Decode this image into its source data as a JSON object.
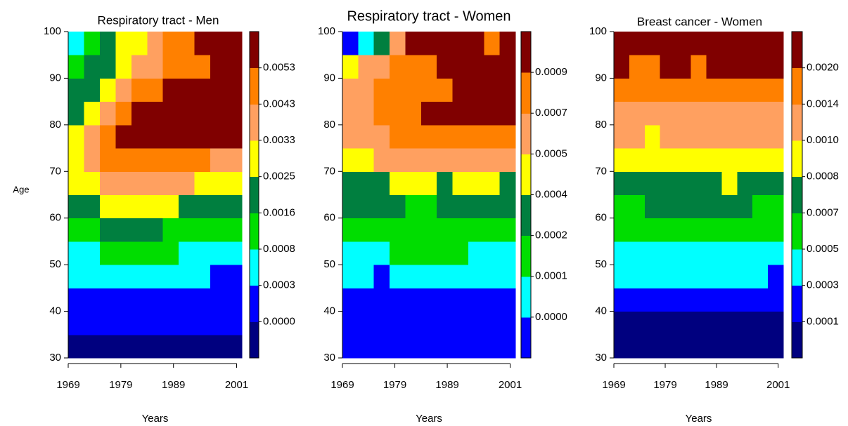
{
  "chart_data": [
    {
      "type": "heatmap",
      "title": "Respiratory tract - Men",
      "x_label": "Years",
      "y_label": "Age",
      "x_bins": [
        1969,
        1972,
        1975,
        1978,
        1981,
        1984,
        1987,
        1990,
        1993,
        1996,
        1999,
        2002
      ],
      "y_bins": [
        30,
        35,
        40,
        45,
        50,
        55,
        60,
        65,
        70,
        75,
        80,
        85,
        90,
        95,
        100
      ],
      "xlim": [
        1969,
        2002
      ],
      "ylim": [
        30,
        100
      ],
      "xticks": [
        1969,
        1979,
        1989,
        2001
      ],
      "yticks": [
        30,
        40,
        50,
        60,
        70,
        80,
        90,
        100
      ],
      "z": [
        [
          1e-05,
          1e-05,
          1e-05,
          1e-05,
          1e-05,
          1e-05,
          1e-05,
          1e-05,
          1e-05,
          1e-05,
          1e-05
        ],
        [
          0.0001,
          0.0001,
          0.0001,
          0.0001,
          0.0001,
          0.0001,
          0.0001,
          0.0001,
          0.0001,
          0.0001,
          0.0001
        ],
        [
          0.0001,
          0.0001,
          0.0001,
          0.0001,
          0.0001,
          0.0001,
          0.0001,
          0.0001,
          0.0001,
          0.0001,
          0.0001
        ],
        [
          0.0005,
          0.0005,
          0.0005,
          0.0005,
          0.0005,
          0.0005,
          0.0005,
          0.0005,
          0.0005,
          0.0001,
          0.0001
        ],
        [
          0.0005,
          0.0005,
          0.0012,
          0.0012,
          0.0012,
          0.0012,
          0.0012,
          0.0005,
          0.0005,
          0.0005,
          0.0005
        ],
        [
          0.0012,
          0.0012,
          0.002,
          0.002,
          0.002,
          0.002,
          0.0012,
          0.0012,
          0.0012,
          0.0012,
          0.0012
        ],
        [
          0.002,
          0.002,
          0.0029,
          0.0029,
          0.0029,
          0.0029,
          0.0029,
          0.002,
          0.002,
          0.002,
          0.002
        ],
        [
          0.0029,
          0.0029,
          0.0038,
          0.0038,
          0.0038,
          0.0038,
          0.0038,
          0.0038,
          0.0029,
          0.0029,
          0.0029
        ],
        [
          0.0029,
          0.0038,
          0.0048,
          0.0048,
          0.0048,
          0.0048,
          0.0048,
          0.0048,
          0.0048,
          0.0038,
          0.0038
        ],
        [
          0.0029,
          0.0038,
          0.0048,
          0.006,
          0.006,
          0.006,
          0.006,
          0.006,
          0.006,
          0.006,
          0.006
        ],
        [
          0.002,
          0.0029,
          0.0038,
          0.0048,
          0.006,
          0.006,
          0.006,
          0.006,
          0.006,
          0.006,
          0.006
        ],
        [
          0.002,
          0.002,
          0.0029,
          0.0038,
          0.0048,
          0.0048,
          0.006,
          0.006,
          0.006,
          0.006,
          0.006
        ],
        [
          0.0012,
          0.002,
          0.002,
          0.0029,
          0.0038,
          0.0038,
          0.0048,
          0.0048,
          0.0048,
          0.006,
          0.006
        ],
        [
          0.0005,
          0.0012,
          0.002,
          0.0029,
          0.0029,
          0.0038,
          0.0048,
          0.0048,
          0.006,
          0.006,
          0.006
        ]
      ],
      "colorbar": {
        "colors": [
          "#00007f",
          "#0000ff",
          "#00ffff",
          "#00dd00",
          "#007f3f",
          "#ffff00",
          "#ffa060",
          "#ff8000",
          "#800000"
        ],
        "ticks": [
          {
            "value": 2e-05,
            "label": "0.0000"
          },
          0.0003,
          0.0008,
          0.0016,
          0.0025,
          0.0033,
          0.0043,
          0.0053
        ]
      }
    },
    {
      "type": "heatmap",
      "title": "Respiratory tract - Women",
      "x_label": "Years",
      "x_bins": [
        1969,
        1972,
        1975,
        1978,
        1981,
        1984,
        1987,
        1990,
        1993,
        1996,
        1999,
        2002
      ],
      "y_bins": [
        30,
        35,
        40,
        45,
        50,
        55,
        60,
        65,
        70,
        75,
        80,
        85,
        90,
        95,
        100
      ],
      "xlim": [
        1969,
        2002
      ],
      "ylim": [
        30,
        100
      ],
      "xticks": [
        1969,
        1979,
        1989,
        2001
      ],
      "yticks": [
        30,
        40,
        50,
        60,
        70,
        80,
        90,
        100
      ],
      "z": [
        [
          2e-05,
          2e-05,
          2e-05,
          2e-05,
          2e-05,
          2e-05,
          2e-05,
          2e-05,
          2e-05,
          2e-05,
          2e-05
        ],
        [
          2e-05,
          2e-05,
          2e-05,
          2e-05,
          2e-05,
          2e-05,
          2e-05,
          2e-05,
          2e-05,
          2e-05,
          2e-05
        ],
        [
          2e-05,
          2e-05,
          2e-05,
          2e-05,
          2e-05,
          2e-05,
          2e-05,
          2e-05,
          2e-05,
          2e-05,
          2e-05
        ],
        [
          8e-05,
          8e-05,
          2e-05,
          8e-05,
          8e-05,
          8e-05,
          8e-05,
          8e-05,
          8e-05,
          8e-05,
          8e-05
        ],
        [
          8e-05,
          8e-05,
          8e-05,
          0.00016,
          0.00016,
          0.00016,
          0.00016,
          0.00016,
          8e-05,
          8e-05,
          8e-05
        ],
        [
          0.00016,
          0.00016,
          0.00016,
          0.00016,
          0.00016,
          0.00016,
          0.00016,
          0.00016,
          0.00016,
          0.00016,
          0.00016
        ],
        [
          0.0003,
          0.0003,
          0.0003,
          0.0003,
          0.00016,
          0.00016,
          0.0003,
          0.0003,
          0.0003,
          0.0003,
          0.0003
        ],
        [
          0.0003,
          0.0003,
          0.0003,
          0.00045,
          0.00045,
          0.00045,
          0.0003,
          0.00045,
          0.00045,
          0.00045,
          0.0003
        ],
        [
          0.00045,
          0.00045,
          0.0006,
          0.0006,
          0.0006,
          0.0006,
          0.0006,
          0.0006,
          0.0006,
          0.0006,
          0.0006
        ],
        [
          0.0006,
          0.0006,
          0.0006,
          0.0008,
          0.0008,
          0.0008,
          0.0008,
          0.0008,
          0.0008,
          0.0008,
          0.0008
        ],
        [
          0.0006,
          0.0006,
          0.0008,
          0.0008,
          0.0008,
          0.0011,
          0.0011,
          0.0011,
          0.0011,
          0.0011,
          0.0011
        ],
        [
          0.0006,
          0.0006,
          0.0008,
          0.0008,
          0.0008,
          0.0008,
          0.0008,
          0.0011,
          0.0011,
          0.0011,
          0.0011
        ],
        [
          0.00045,
          0.0006,
          0.0006,
          0.0008,
          0.0008,
          0.0008,
          0.0011,
          0.0011,
          0.0011,
          0.0011,
          0.0011
        ],
        [
          2e-05,
          8e-05,
          0.0003,
          0.0006,
          0.0011,
          0.0011,
          0.0011,
          0.0011,
          0.0011,
          0.0008,
          0.0011
        ]
      ],
      "colorbar": {
        "colors": [
          "#0000ff",
          "#00ffff",
          "#00dd00",
          "#007f3f",
          "#ffff00",
          "#ffa060",
          "#ff8000",
          "#800000"
        ],
        "ticks": [
          {
            "value": 4e-05,
            "label": "0.0000"
          },
          {
            "value": 0.00012,
            "label": "0.0001"
          },
          0.0002,
          0.0004,
          0.0005,
          0.0007,
          0.0009
        ]
      }
    },
    {
      "type": "heatmap",
      "title": "Breast cancer - Women",
      "x_label": "Years",
      "x_bins": [
        1969,
        1972,
        1975,
        1978,
        1981,
        1984,
        1987,
        1990,
        1993,
        1996,
        1999,
        2002
      ],
      "y_bins": [
        30,
        35,
        40,
        45,
        50,
        55,
        60,
        65,
        70,
        75,
        80,
        85,
        90,
        95,
        100
      ],
      "xlim": [
        1969,
        2002
      ],
      "ylim": [
        30,
        100
      ],
      "xticks": [
        1969,
        1979,
        1989,
        2001
      ],
      "yticks": [
        30,
        40,
        50,
        60,
        70,
        80,
        90,
        100
      ],
      "z": [
        [
          5e-05,
          5e-05,
          5e-05,
          5e-05,
          5e-05,
          5e-05,
          5e-05,
          5e-05,
          5e-05,
          5e-05,
          5e-05
        ],
        [
          5e-05,
          5e-05,
          5e-05,
          5e-05,
          5e-05,
          5e-05,
          5e-05,
          5e-05,
          5e-05,
          5e-05,
          5e-05
        ],
        [
          0.0002,
          0.0002,
          0.0002,
          0.0002,
          0.0002,
          0.0002,
          0.0002,
          0.0002,
          0.0002,
          0.0002,
          0.0002
        ],
        [
          0.0004,
          0.0004,
          0.0004,
          0.0004,
          0.0004,
          0.0004,
          0.0004,
          0.0004,
          0.0004,
          0.0004,
          0.0002
        ],
        [
          0.0004,
          0.0004,
          0.0004,
          0.0004,
          0.0004,
          0.0004,
          0.0004,
          0.0004,
          0.0004,
          0.0004,
          0.0004
        ],
        [
          0.0006,
          0.0006,
          0.0006,
          0.0006,
          0.0006,
          0.0006,
          0.0006,
          0.0006,
          0.0006,
          0.0006,
          0.0006
        ],
        [
          0.0006,
          0.0006,
          0.00075,
          0.00075,
          0.00075,
          0.00075,
          0.00075,
          0.00075,
          0.00075,
          0.0006,
          0.0006
        ],
        [
          0.00075,
          0.00075,
          0.00075,
          0.00075,
          0.00075,
          0.00075,
          0.00075,
          0.0009,
          0.00075,
          0.00075,
          0.00075
        ],
        [
          0.0009,
          0.0009,
          0.0009,
          0.0009,
          0.0009,
          0.0009,
          0.0009,
          0.0009,
          0.0009,
          0.0009,
          0.0009
        ],
        [
          0.0012,
          0.0012,
          0.0009,
          0.0012,
          0.0012,
          0.0012,
          0.0012,
          0.0012,
          0.0012,
          0.0012,
          0.0012
        ],
        [
          0.0012,
          0.0012,
          0.0012,
          0.0012,
          0.0012,
          0.0012,
          0.0012,
          0.0012,
          0.0012,
          0.0012,
          0.0012
        ],
        [
          0.0017,
          0.0017,
          0.0017,
          0.0017,
          0.0017,
          0.0017,
          0.0017,
          0.0017,
          0.0017,
          0.0017,
          0.0017
        ],
        [
          0.0024,
          0.0017,
          0.0017,
          0.0024,
          0.0024,
          0.0017,
          0.0024,
          0.0024,
          0.0024,
          0.0024,
          0.0024
        ],
        [
          0.0024,
          0.0024,
          0.0024,
          0.0024,
          0.0024,
          0.0024,
          0.0024,
          0.0024,
          0.0024,
          0.0024,
          0.0024
        ]
      ],
      "colorbar": {
        "colors": [
          "#00007f",
          "#0000ff",
          "#00ffff",
          "#00dd00",
          "#007f3f",
          "#ffff00",
          "#ffa060",
          "#ff8000",
          "#800000"
        ],
        "ticks": [
          0.0001,
          0.0003,
          0.0005,
          0.0007,
          0.0008,
          {
            "value": 0.001,
            "label": "0.0010"
          },
          0.0014,
          {
            "value": 0.002,
            "label": "0.0020"
          }
        ]
      }
    }
  ]
}
